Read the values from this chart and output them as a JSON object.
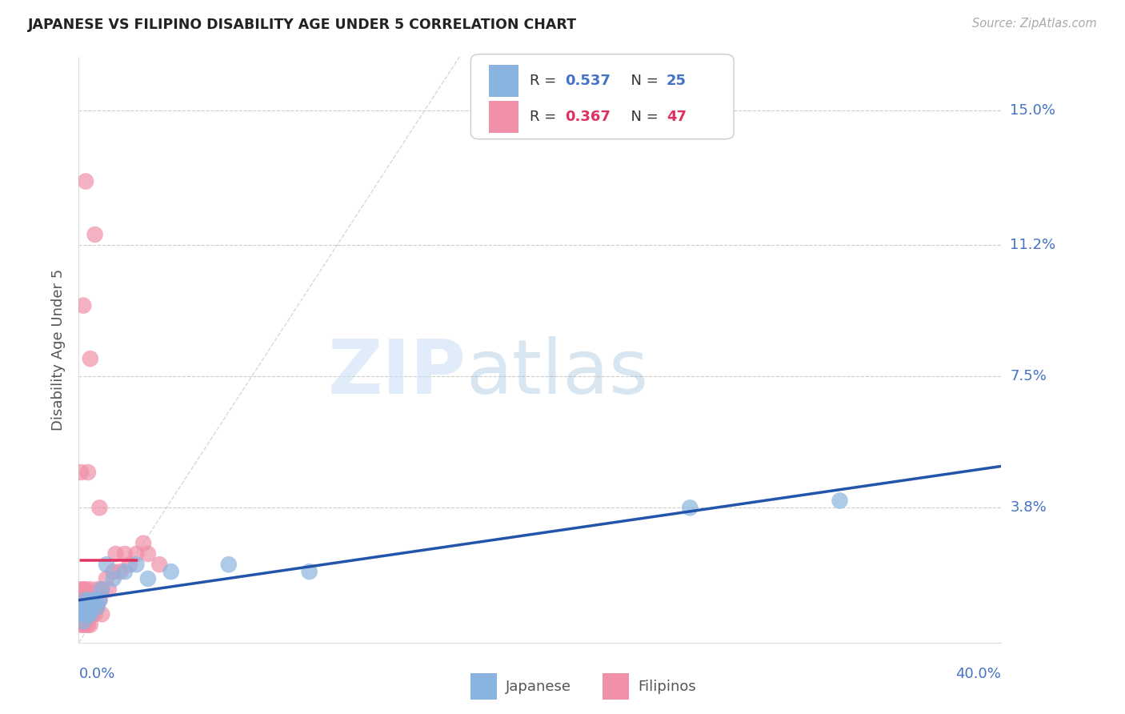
{
  "title": "JAPANESE VS FILIPINO DISABILITY AGE UNDER 5 CORRELATION CHART",
  "source": "Source: ZipAtlas.com",
  "ylabel": "Disability Age Under 5",
  "ytick_labels": [
    "15.0%",
    "11.2%",
    "7.5%",
    "3.8%"
  ],
  "ytick_values": [
    0.15,
    0.112,
    0.075,
    0.038
  ],
  "xlim": [
    0.0,
    0.4
  ],
  "ylim": [
    0.0,
    0.165
  ],
  "legend_japanese_R": "0.537",
  "legend_japanese_N": "25",
  "legend_filipino_R": "0.367",
  "legend_filipino_N": "47",
  "japanese_color": "#8ab4e0",
  "filipino_color": "#f090a8",
  "japanese_line_color": "#2255aa",
  "filipino_line_color": "#e03060",
  "diagonal_color": "#c8c8c8",
  "background_color": "#ffffff",
  "japanese_x": [
    0.001,
    0.001,
    0.002,
    0.002,
    0.003,
    0.003,
    0.004,
    0.004,
    0.005,
    0.005,
    0.006,
    0.007,
    0.008,
    0.009,
    0.01,
    0.012,
    0.015,
    0.02,
    0.025,
    0.03,
    0.04,
    0.065,
    0.1,
    0.265,
    0.33
  ],
  "japanese_y": [
    0.008,
    0.01,
    0.006,
    0.01,
    0.008,
    0.012,
    0.008,
    0.01,
    0.008,
    0.012,
    0.01,
    0.012,
    0.01,
    0.012,
    0.015,
    0.022,
    0.018,
    0.02,
    0.022,
    0.018,
    0.02,
    0.022,
    0.02,
    0.038,
    0.04
  ],
  "filipino_x": [
    0.001,
    0.001,
    0.001,
    0.001,
    0.001,
    0.002,
    0.002,
    0.002,
    0.002,
    0.002,
    0.003,
    0.003,
    0.003,
    0.003,
    0.004,
    0.004,
    0.004,
    0.005,
    0.005,
    0.005,
    0.006,
    0.006,
    0.007,
    0.007,
    0.008,
    0.008,
    0.009,
    0.01,
    0.01,
    0.012,
    0.013,
    0.015,
    0.016,
    0.018,
    0.02,
    0.022,
    0.025,
    0.028,
    0.03,
    0.035,
    0.004,
    0.005,
    0.007,
    0.009,
    0.002,
    0.003,
    0.001
  ],
  "filipino_y": [
    0.005,
    0.008,
    0.01,
    0.012,
    0.015,
    0.005,
    0.008,
    0.01,
    0.012,
    0.015,
    0.005,
    0.008,
    0.012,
    0.015,
    0.005,
    0.008,
    0.01,
    0.005,
    0.01,
    0.015,
    0.008,
    0.012,
    0.008,
    0.01,
    0.01,
    0.015,
    0.012,
    0.008,
    0.015,
    0.018,
    0.015,
    0.02,
    0.025,
    0.02,
    0.025,
    0.022,
    0.025,
    0.028,
    0.025,
    0.022,
    0.048,
    0.08,
    0.115,
    0.038,
    0.095,
    0.13,
    0.048
  ]
}
